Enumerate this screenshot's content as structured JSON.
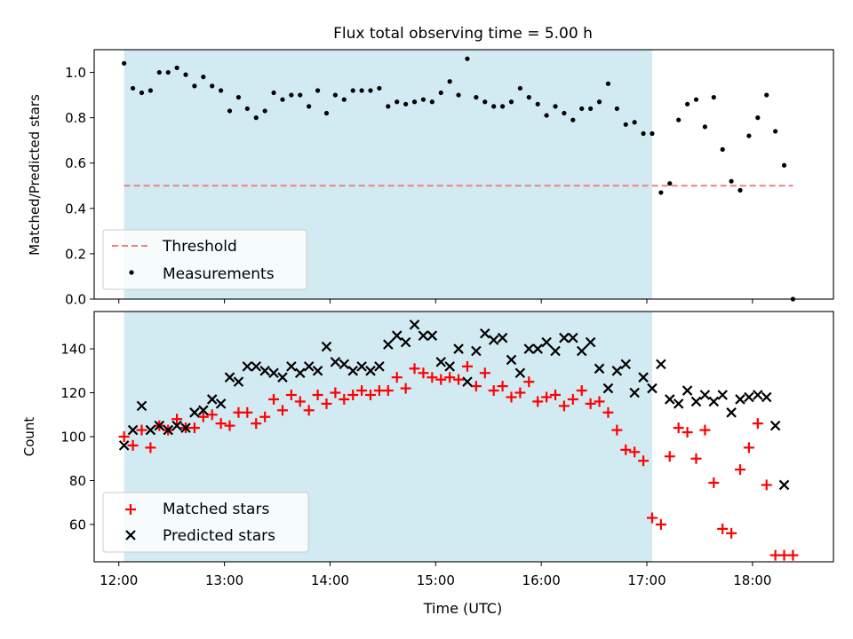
{
  "chart_data": [
    {
      "type": "scatter",
      "title": "Flux total observing time = 5.00 h",
      "xlabel": "",
      "ylabel": "Matched/Predicted stars",
      "ylim": [
        0,
        1.1
      ],
      "yticks": [
        "0.0",
        "0.2",
        "0.4",
        "0.6",
        "0.8",
        "1.0"
      ],
      "xlim": [
        "11:46",
        "18:46"
      ],
      "highlight_span": {
        "start": "12:03",
        "end": "17:03",
        "color": "#add8e6"
      },
      "legend_position": "lower-left",
      "threshold": {
        "name": "Threshold",
        "value": 0.5,
        "x_start": "12:03",
        "x_end": "18:23",
        "color": "#f08080",
        "style": "dashed"
      },
      "series": [
        {
          "name": "Measurements",
          "marker": "dot",
          "color": "#000000",
          "x": [
            "12:03",
            "12:08",
            "12:13",
            "12:18",
            "12:23",
            "12:28",
            "12:33",
            "12:38",
            "12:43",
            "12:48",
            "12:53",
            "12:58",
            "13:03",
            "13:08",
            "13:13",
            "13:18",
            "13:23",
            "13:28",
            "13:33",
            "13:38",
            "13:43",
            "13:48",
            "13:53",
            "13:58",
            "14:03",
            "14:08",
            "14:13",
            "14:18",
            "14:23",
            "14:28",
            "14:33",
            "14:38",
            "14:43",
            "14:48",
            "14:53",
            "14:58",
            "15:03",
            "15:08",
            "15:13",
            "15:18",
            "15:23",
            "15:28",
            "15:33",
            "15:38",
            "15:43",
            "15:48",
            "15:53",
            "15:58",
            "16:03",
            "16:08",
            "16:13",
            "16:18",
            "16:23",
            "16:28",
            "16:33",
            "16:38",
            "16:43",
            "16:48",
            "16:53",
            "16:58",
            "17:03",
            "17:08",
            "17:13",
            "17:18",
            "17:23",
            "17:28",
            "17:33",
            "17:38",
            "17:43",
            "17:48",
            "17:53",
            "17:58",
            "18:03",
            "18:08",
            "18:13",
            "18:18",
            "18:23"
          ],
          "y": [
            1.04,
            0.93,
            0.91,
            0.92,
            1.0,
            1.0,
            1.02,
            0.99,
            0.94,
            0.98,
            0.94,
            0.92,
            0.83,
            0.89,
            0.84,
            0.8,
            0.83,
            0.91,
            0.88,
            0.9,
            0.9,
            0.85,
            0.92,
            0.82,
            0.9,
            0.88,
            0.92,
            0.92,
            0.92,
            0.93,
            0.85,
            0.87,
            0.86,
            0.87,
            0.88,
            0.87,
            0.91,
            0.96,
            0.9,
            1.06,
            0.89,
            0.87,
            0.85,
            0.85,
            0.87,
            0.93,
            0.89,
            0.86,
            0.81,
            0.85,
            0.82,
            0.79,
            0.84,
            0.84,
            0.87,
            0.95,
            0.84,
            0.77,
            0.78,
            0.73,
            0.73,
            0.47,
            0.51,
            0.79,
            0.86,
            0.88,
            0.76,
            0.89,
            0.66,
            0.52,
            0.48,
            0.72,
            0.8,
            0.9,
            0.74,
            0.59,
            0.0
          ]
        }
      ]
    },
    {
      "type": "scatter",
      "title": "",
      "xlabel": "Time (UTC)",
      "ylabel": "Count",
      "ylim": [
        43,
        157
      ],
      "yticks": [
        "60",
        "80",
        "100",
        "120",
        "140"
      ],
      "xlim": [
        "11:46",
        "18:46"
      ],
      "xticks": [
        "12:00",
        "13:00",
        "14:00",
        "15:00",
        "16:00",
        "17:00",
        "18:00"
      ],
      "highlight_span": {
        "start": "12:03",
        "end": "17:03",
        "color": "#add8e6"
      },
      "legend_position": "lower-left",
      "series": [
        {
          "name": "Matched stars",
          "marker": "plus",
          "color": "#ff0000",
          "x": [
            "12:03",
            "12:08",
            "12:13",
            "12:18",
            "12:23",
            "12:28",
            "12:33",
            "12:38",
            "12:43",
            "12:48",
            "12:53",
            "12:58",
            "13:03",
            "13:08",
            "13:13",
            "13:18",
            "13:23",
            "13:28",
            "13:33",
            "13:38",
            "13:43",
            "13:48",
            "13:53",
            "13:58",
            "14:03",
            "14:08",
            "14:13",
            "14:18",
            "14:23",
            "14:28",
            "14:33",
            "14:38",
            "14:43",
            "14:48",
            "14:53",
            "14:58",
            "15:03",
            "15:08",
            "15:13",
            "15:18",
            "15:23",
            "15:28",
            "15:33",
            "15:38",
            "15:43",
            "15:48",
            "15:53",
            "15:58",
            "16:03",
            "16:08",
            "16:13",
            "16:18",
            "16:23",
            "16:28",
            "16:33",
            "16:38",
            "16:43",
            "16:48",
            "16:53",
            "16:58",
            "17:03",
            "17:08",
            "17:13",
            "17:18",
            "17:23",
            "17:28",
            "17:33",
            "17:38",
            "17:43",
            "17:48",
            "17:53",
            "17:58",
            "18:03",
            "18:08",
            "18:13",
            "18:18",
            "18:23"
          ],
          "y": [
            100,
            96,
            103,
            95,
            105,
            103,
            108,
            104,
            104,
            109,
            110,
            106,
            105,
            111,
            111,
            106,
            109,
            117,
            112,
            119,
            116,
            112,
            119,
            115,
            120,
            117,
            119,
            121,
            119,
            121,
            121,
            127,
            122,
            131,
            129,
            127,
            126,
            127,
            126,
            132,
            123,
            129,
            121,
            123,
            118,
            120,
            125,
            116,
            118,
            119,
            114,
            117,
            121,
            115,
            116,
            111,
            103,
            94,
            93,
            89,
            63,
            60,
            91,
            104,
            102,
            90,
            103,
            79,
            58,
            56,
            85,
            95,
            106,
            78,
            46,
            46,
            46
          ]
        },
        {
          "name": "Predicted stars",
          "marker": "x",
          "color": "#000000",
          "x": [
            "12:03",
            "12:08",
            "12:13",
            "12:18",
            "12:23",
            "12:28",
            "12:33",
            "12:38",
            "12:43",
            "12:48",
            "12:53",
            "12:58",
            "13:03",
            "13:08",
            "13:13",
            "13:18",
            "13:23",
            "13:28",
            "13:33",
            "13:38",
            "13:43",
            "13:48",
            "13:53",
            "13:58",
            "14:03",
            "14:08",
            "14:13",
            "14:18",
            "14:23",
            "14:28",
            "14:33",
            "14:38",
            "14:43",
            "14:48",
            "14:53",
            "14:58",
            "15:03",
            "15:08",
            "15:13",
            "15:18",
            "15:23",
            "15:28",
            "15:33",
            "15:38",
            "15:43",
            "15:48",
            "15:53",
            "15:58",
            "16:03",
            "16:08",
            "16:13",
            "16:18",
            "16:23",
            "16:28",
            "16:33",
            "16:38",
            "16:43",
            "16:48",
            "16:53",
            "16:58",
            "17:03",
            "17:08",
            "17:13",
            "17:18",
            "17:23",
            "17:28",
            "17:33",
            "17:38",
            "17:43",
            "17:48",
            "17:53",
            "17:58",
            "18:03",
            "18:08",
            "18:13",
            "18:18"
          ],
          "y": [
            96,
            103,
            114,
            103,
            105,
            103,
            105,
            104,
            111,
            112,
            117,
            115,
            127,
            125,
            132,
            132,
            130,
            129,
            127,
            132,
            129,
            132,
            130,
            141,
            134,
            133,
            130,
            132,
            130,
            132,
            142,
            146,
            143,
            151,
            146,
            146,
            134,
            132,
            140,
            125,
            139,
            147,
            144,
            145,
            135,
            129,
            140,
            140,
            143,
            139,
            145,
            145,
            139,
            143,
            131,
            122,
            130,
            133,
            120,
            127,
            122,
            133,
            117,
            115,
            121,
            116,
            119,
            116,
            119,
            111,
            117,
            118,
            119,
            118,
            105,
            78
          ]
        }
      ]
    }
  ]
}
